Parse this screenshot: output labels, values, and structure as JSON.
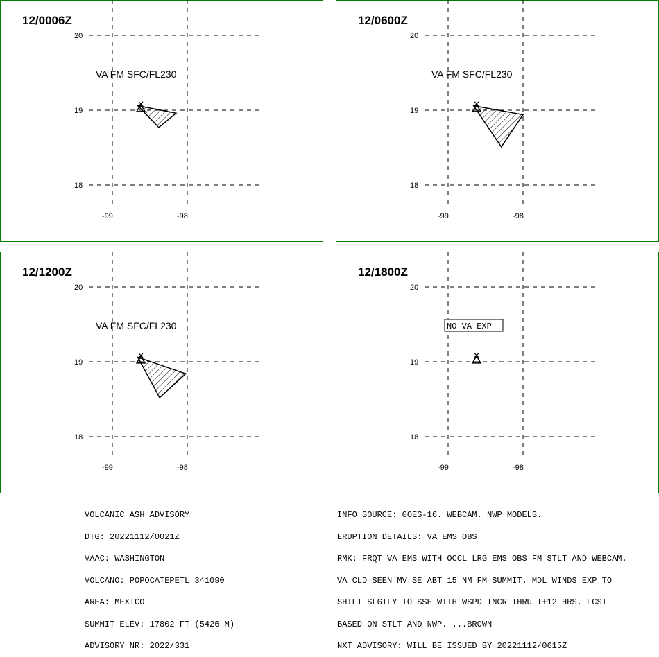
{
  "panels": [
    {
      "time": "12/0006Z",
      "label": "VA FM SFC/FL230",
      "boxed": false,
      "polygon": [
        [
          -98.66,
          19.06
        ],
        [
          -98.15,
          18.96
        ],
        [
          -98.38,
          18.77
        ]
      ]
    },
    {
      "time": "12/0600Z",
      "label": "VA FM SFC/FL230",
      "boxed": false,
      "polygon": [
        [
          -98.66,
          19.06
        ],
        [
          -98.0,
          18.94
        ],
        [
          -98.29,
          18.51
        ]
      ]
    },
    {
      "time": "12/1200Z",
      "label": "VA FM SFC/FL230",
      "boxed": false,
      "polygon": [
        [
          -98.66,
          19.06
        ],
        [
          -98.02,
          18.84
        ],
        [
          -98.37,
          18.52
        ]
      ]
    },
    {
      "time": "12/1800Z",
      "label": "NO VA EXP",
      "boxed": true,
      "polygon": []
    }
  ],
  "map": {
    "lat_ticks": [
      "20",
      "19",
      "18"
    ],
    "lon_ticks": [
      "-99",
      "-98"
    ],
    "lat_values": [
      20,
      19,
      18
    ],
    "lon_values": [
      -99,
      -98
    ],
    "volcano": {
      "lon": -98.62,
      "lat": 19.02
    }
  },
  "advisory": {
    "left": [
      "VOLCANIC ASH ADVISORY",
      "DTG: 20221112/0021Z",
      "VAAC: WASHINGTON",
      "VOLCANO: POPOCATEPETL 341090",
      "AREA: MEXICO",
      "SUMMIT ELEV: 17802 FT (5426 M)",
      "ADVISORY NR: 2022/331"
    ],
    "right": [
      "INFO SOURCE: GOES-16. WEBCAM. NWP MODELS.",
      "ERUPTION DETAILS: VA EMS OBS",
      "RMK: FRQT VA EMS WITH OCCL LRG EMS OBS FM STLT AND WEBCAM.",
      "VA CLD SEEN MV SE ABT 15 NM FM SUMMIT. MDL WINDS EXP TO",
      "SHIFT SLGTLY TO SSE WITH WSPD INCR THRU T+12 HRS. FCST",
      "BASED ON STLT AND NWP. ...BROWN",
      "NXT ADVISORY: WILL BE ISSUED BY 20221112/0615Z"
    ]
  },
  "colors": {
    "panel_border": "#008000",
    "ink": "#000000",
    "background": "#ffffff"
  }
}
